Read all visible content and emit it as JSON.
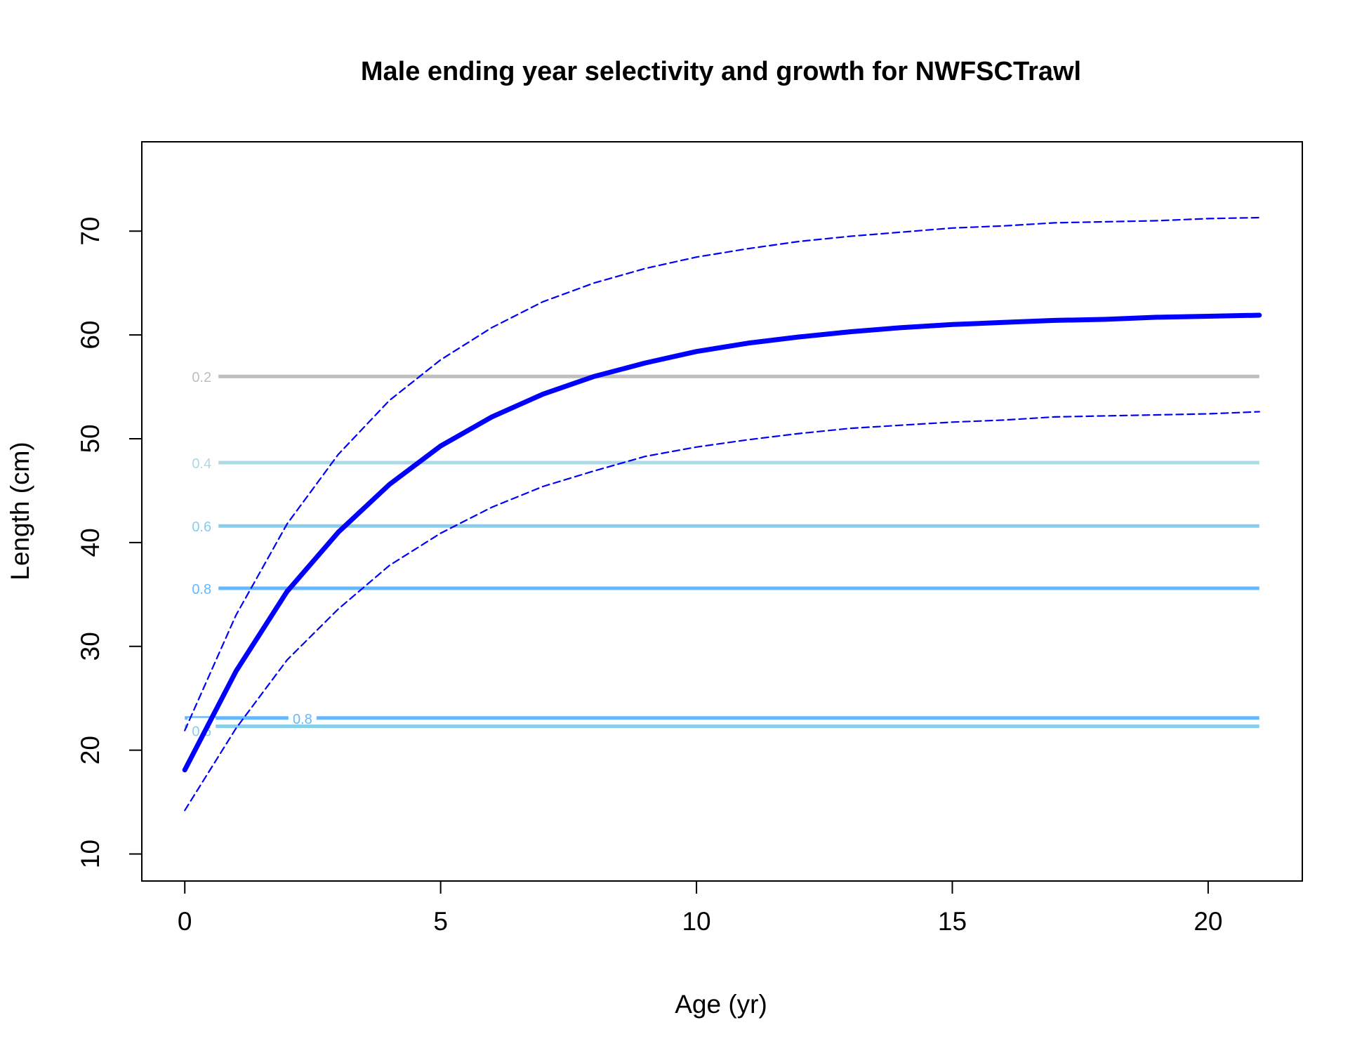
{
  "chart_data": {
    "type": "line",
    "title": "Male ending year selectivity and growth for NWFSCTrawl",
    "xlabel": "Age (yr)",
    "ylabel": "Length (cm)",
    "xlim": [
      -0.84,
      21.84
    ],
    "ylim": [
      7.4,
      78.6
    ],
    "x_ticks": [
      0,
      5,
      10,
      15,
      20
    ],
    "y_ticks": [
      10,
      20,
      30,
      40,
      50,
      60,
      70
    ],
    "grid": false,
    "series": [
      {
        "role": "mean length at age",
        "color": "#0000ff",
        "style": "solid",
        "x": [
          0,
          1,
          2,
          3,
          4,
          5,
          6,
          7,
          8,
          9,
          10,
          11,
          12,
          13,
          14,
          15,
          16,
          17,
          18,
          19,
          20,
          21
        ],
        "y": [
          18.1,
          27.6,
          35.3,
          41.0,
          45.6,
          49.3,
          52.1,
          54.3,
          56.0,
          57.3,
          58.4,
          59.2,
          59.8,
          60.3,
          60.7,
          61.0,
          61.2,
          61.4,
          61.5,
          61.7,
          61.8,
          61.9
        ]
      },
      {
        "role": "upper interval",
        "color": "#0000ff",
        "style": "dashed",
        "x": [
          0,
          1,
          2,
          3,
          4,
          5,
          6,
          7,
          8,
          9,
          10,
          11,
          12,
          13,
          14,
          15,
          16,
          17,
          18,
          19,
          20,
          21
        ],
        "y": [
          21.9,
          33.0,
          41.8,
          48.5,
          53.7,
          57.6,
          60.7,
          63.2,
          65.0,
          66.4,
          67.5,
          68.3,
          69.0,
          69.5,
          69.9,
          70.3,
          70.5,
          70.8,
          70.9,
          71.0,
          71.2,
          71.3
        ]
      },
      {
        "role": "lower interval",
        "color": "#0000ff",
        "style": "dashed",
        "x": [
          0,
          1,
          2,
          3,
          4,
          5,
          6,
          7,
          8,
          9,
          10,
          11,
          12,
          13,
          14,
          15,
          16,
          17,
          18,
          19,
          20,
          21
        ],
        "y": [
          14.2,
          22.1,
          28.7,
          33.6,
          37.8,
          40.9,
          43.4,
          45.4,
          46.9,
          48.3,
          49.2,
          49.9,
          50.5,
          51.0,
          51.3,
          51.6,
          51.8,
          52.1,
          52.2,
          52.3,
          52.4,
          52.6
        ]
      }
    ],
    "contours": [
      {
        "level": "0.2",
        "length": 56.0,
        "color": "#bebebe",
        "show_label": true
      },
      {
        "level": "0.4",
        "length": 47.7,
        "color": "#add8e6",
        "show_label": true
      },
      {
        "level": "0.6",
        "length": 41.6,
        "color": "#87ceeb",
        "show_label": true
      },
      {
        "level": "0.8",
        "length": 35.6,
        "color": "#63b8ff",
        "show_label": true
      },
      {
        "level": "0.8",
        "length": 23.1,
        "color": "#63b8ff",
        "show_label": true
      },
      {
        "level": "0.6",
        "length": 22.3,
        "color": "#87ceeb",
        "show_label": true
      }
    ]
  }
}
